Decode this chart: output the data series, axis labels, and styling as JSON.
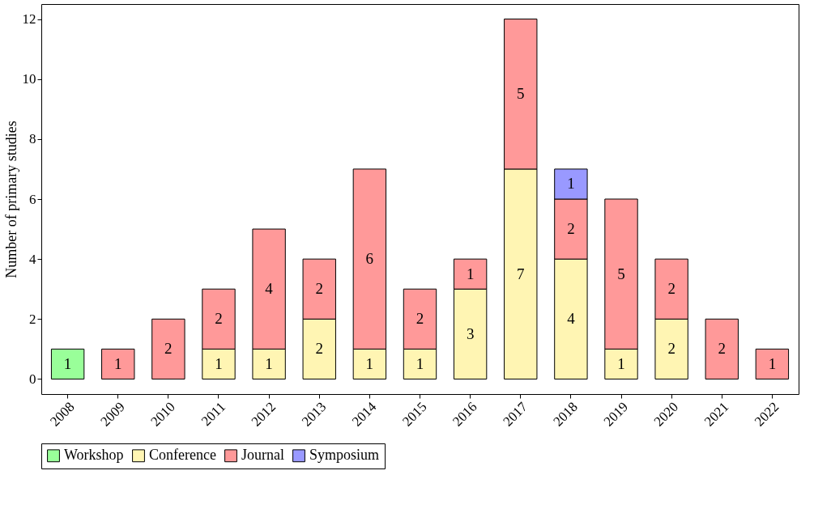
{
  "chart_data": {
    "type": "bar",
    "stacked": true,
    "ylabel": "Number of primary studies",
    "categories": [
      "2008",
      "2009",
      "2010",
      "2011",
      "2012",
      "2013",
      "2014",
      "2015",
      "2016",
      "2017",
      "2018",
      "2019",
      "2020",
      "2021",
      "2022"
    ],
    "series": [
      {
        "name": "Workshop",
        "color": "#99ff99",
        "values": [
          1,
          null,
          null,
          null,
          null,
          null,
          null,
          null,
          null,
          null,
          null,
          null,
          null,
          null,
          null
        ]
      },
      {
        "name": "Conference",
        "color": "#fff5b3",
        "values": [
          null,
          null,
          null,
          1,
          1,
          2,
          1,
          1,
          3,
          7,
          4,
          1,
          2,
          null,
          null
        ]
      },
      {
        "name": "Journal",
        "color": "#ff9999",
        "values": [
          null,
          1,
          2,
          2,
          4,
          2,
          6,
          2,
          1,
          5,
          2,
          5,
          2,
          2,
          1
        ]
      },
      {
        "name": "Symposium",
        "color": "#9999ff",
        "values": [
          null,
          null,
          null,
          null,
          null,
          null,
          null,
          null,
          null,
          null,
          1,
          null,
          null,
          null,
          null
        ]
      }
    ],
    "ylim": [
      -0.5,
      12.5
    ],
    "yticks": [
      0,
      2,
      4,
      6,
      8,
      10,
      12
    ],
    "data_labels": true,
    "legend": "bottom",
    "grid": false
  }
}
